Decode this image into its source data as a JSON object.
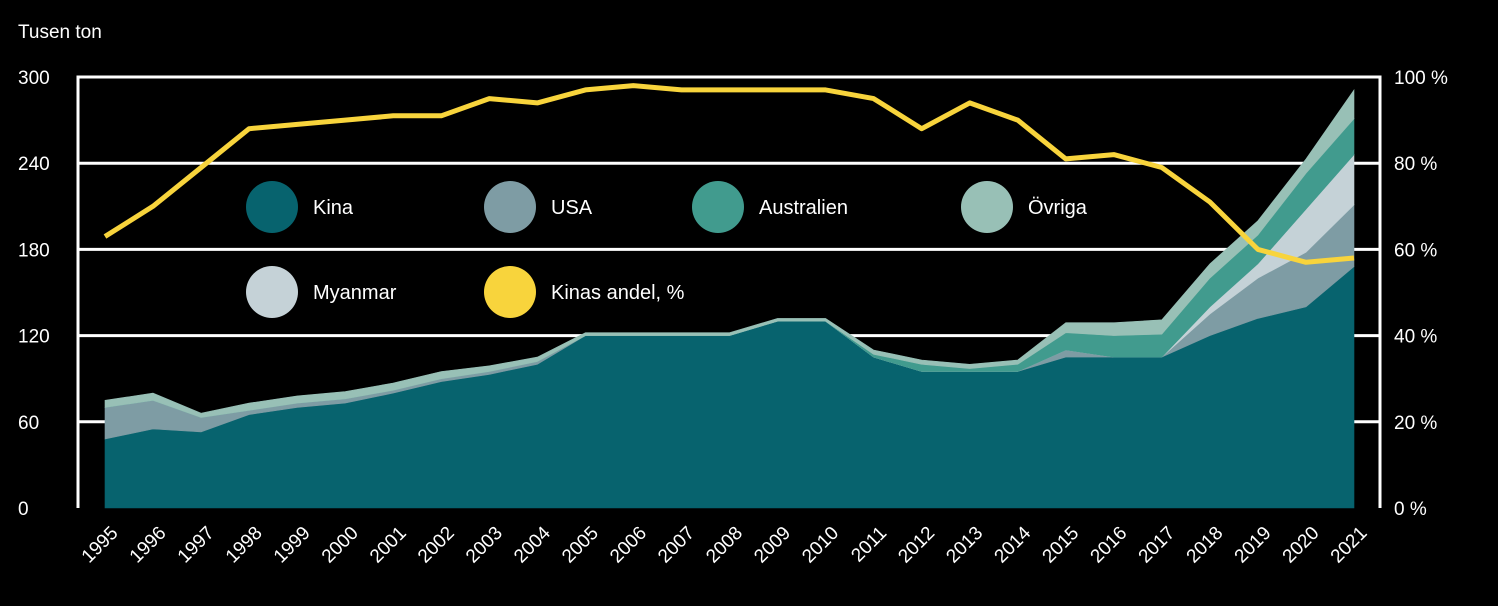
{
  "chart_data": {
    "type": "area",
    "y_unit_label": "Tusen ton",
    "x": [
      "1995",
      "1996",
      "1997",
      "1998",
      "1999",
      "2000",
      "2001",
      "2002",
      "2003",
      "2004",
      "2005",
      "2006",
      "2007",
      "2008",
      "2009",
      "2010",
      "2011",
      "2012",
      "2013",
      "2014",
      "2015",
      "2016",
      "2017",
      "2018",
      "2019",
      "2020",
      "2021"
    ],
    "ylim": [
      0,
      300
    ],
    "y_ticks": [
      "0",
      "60",
      "120",
      "180",
      "240",
      "300"
    ],
    "y2lim": [
      0,
      100
    ],
    "y2_ticks": [
      "0 %",
      "20 %",
      "40 %",
      "60 %",
      "80 %",
      "100 %"
    ],
    "stacked": true,
    "grid": true,
    "series": [
      {
        "name": "Kina",
        "color": "#07636e",
        "values": [
          48,
          55,
          53,
          65,
          70,
          73,
          80,
          88,
          93,
          100,
          120,
          120,
          120,
          120,
          130,
          130,
          105,
          95,
          95,
          95,
          105,
          105,
          105,
          120,
          132,
          140,
          168
        ]
      },
      {
        "name": "USA",
        "color": "#7e9ca4",
        "values": [
          22,
          20,
          10,
          3,
          3,
          3,
          2,
          2,
          2,
          2,
          0,
          0,
          0,
          0,
          0,
          0,
          0,
          0,
          0,
          0,
          5,
          0,
          0,
          15,
          28,
          38,
          43
        ]
      },
      {
        "name": "Myanmar",
        "color": "#c5d2d7",
        "values": [
          0,
          0,
          0,
          0,
          0,
          0,
          0,
          0,
          0,
          0,
          0,
          0,
          0,
          0,
          0,
          0,
          0,
          0,
          0,
          0,
          0,
          0,
          0,
          5,
          10,
          30,
          35
        ]
      },
      {
        "name": "Australien",
        "color": "#419b8e",
        "values": [
          0,
          0,
          0,
          0,
          0,
          0,
          0,
          0,
          0,
          0,
          0,
          0,
          0,
          0,
          0,
          0,
          2,
          5,
          2,
          5,
          12,
          15,
          16,
          20,
          20,
          25,
          25
        ]
      },
      {
        "name": "Övriga",
        "color": "#98c0b6",
        "values": [
          5,
          5,
          3,
          5,
          5,
          5,
          5,
          5,
          4,
          3,
          2,
          2,
          2,
          2,
          2,
          2,
          3,
          3,
          3,
          3,
          7,
          9,
          10,
          10,
          10,
          10,
          20
        ]
      }
    ],
    "line_series": {
      "name": "Kinas andel, %",
      "color": "#f8d43c",
      "axis": "right",
      "values": [
        63,
        70,
        79,
        88,
        89,
        90,
        91,
        91,
        95,
        94,
        97,
        98,
        97,
        97,
        97,
        97,
        95,
        88,
        94,
        90,
        81,
        82,
        79,
        71,
        60,
        57,
        58
      ]
    }
  },
  "legend": [
    {
      "label": "Kina",
      "color": "#07636e"
    },
    {
      "label": "USA",
      "color": "#7e9ca4"
    },
    {
      "label": "Australien",
      "color": "#419b8e"
    },
    {
      "label": "Övriga",
      "color": "#98c0b6"
    },
    {
      "label": "Myanmar",
      "color": "#c5d2d7"
    },
    {
      "label": "Kinas andel, %",
      "color": "#f8d43c"
    }
  ]
}
